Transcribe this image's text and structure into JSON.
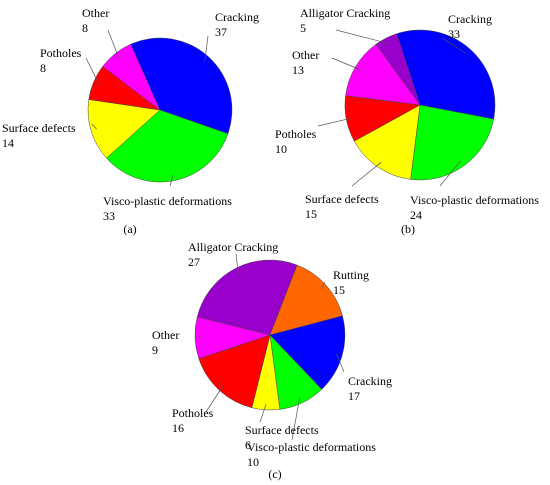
{
  "chart_data": [
    {
      "type": "pie",
      "caption": "(a)",
      "categories": [
        "Cracking",
        "Visco-plastic deformations",
        "Surface defects",
        "Potholes",
        "Other"
      ],
      "values": [
        37,
        33,
        14,
        8,
        8
      ],
      "colors": [
        "#0000ff",
        "#00ff00",
        "#ffff00",
        "#ff0000",
        "#ff00ff"
      ]
    },
    {
      "type": "pie",
      "caption": "(b)",
      "categories": [
        "Cracking",
        "Visco-plastic deformations",
        "Surface defects",
        "Potholes",
        "Other",
        "Alligator Cracking"
      ],
      "values": [
        33,
        24,
        15,
        10,
        13,
        5
      ],
      "colors": [
        "#0000ff",
        "#00ff00",
        "#ffff00",
        "#ff0000",
        "#ff00ff",
        "#9900cc"
      ]
    },
    {
      "type": "pie",
      "caption": "(c)",
      "categories": [
        "Alligator Cracking",
        "Rutting",
        "Cracking",
        "Visco-plastic deformations",
        "Surface defects",
        "Potholes",
        "Other"
      ],
      "values": [
        27,
        15,
        17,
        10,
        6,
        16,
        9
      ],
      "colors": [
        "#9900cc",
        "#ff6600",
        "#0000ff",
        "#00ff00",
        "#ffff00",
        "#ff0000",
        "#ff00ff"
      ]
    }
  ]
}
